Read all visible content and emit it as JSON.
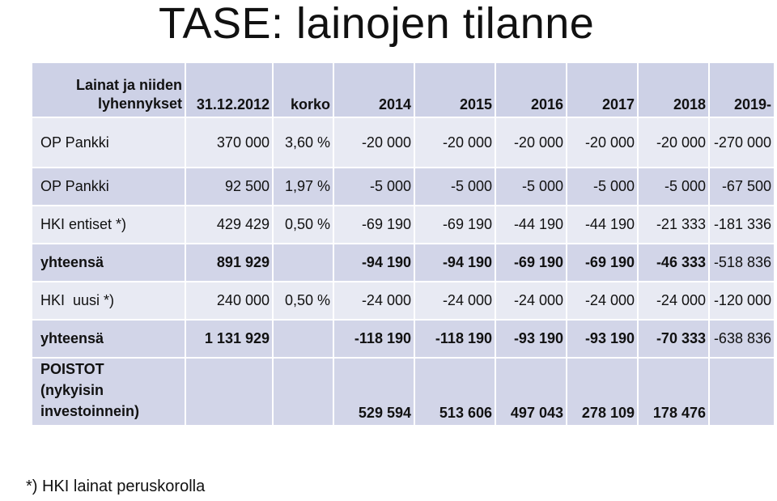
{
  "title": "TASE: lainojen tilanne",
  "header": {
    "name_line1": "Lainat ja niiden",
    "name_line2": "lyhennykset",
    "date": "31.12.2012",
    "rate": "korko",
    "years": [
      "2014",
      "2015",
      "2016",
      "2017",
      "2018",
      "2019-"
    ]
  },
  "rows": [
    {
      "name": "OP Pankki",
      "amount": "370 000",
      "rate": "3,60 %",
      "values": [
        "-20 000",
        "-20 000",
        "-20 000",
        "-20 000",
        "-20 000",
        "-270 000"
      ]
    },
    {
      "name": "OP Pankki",
      "amount": "92 500",
      "rate": "1,97 %",
      "values": [
        "-5 000",
        "-5 000",
        "-5 000",
        "-5 000",
        "-5 000",
        "-67 500"
      ]
    },
    {
      "name": "HKI entiset *)",
      "amount": "429 429",
      "rate": "0,50 %",
      "values": [
        "-69 190",
        "-69 190",
        "-44 190",
        "-44 190",
        "-21 333",
        "-181 336"
      ]
    },
    {
      "name": "yhteensä",
      "amount": "891 929",
      "rate": "",
      "values": [
        "-94 190",
        "-94 190",
        "-69 190",
        "-69 190",
        "-46 333",
        "-518 836"
      ]
    },
    {
      "name": "HKI  uusi *)",
      "amount": "240 000",
      "rate": "0,50 %",
      "values": [
        "-24 000",
        "-24 000",
        "-24 000",
        "-24 000",
        "-24 000",
        "-120 000"
      ]
    },
    {
      "name": "yhteensä",
      "amount": "1 131 929",
      "rate": "",
      "values": [
        "-118 190",
        "-118 190",
        "-93 190",
        "-93 190",
        "-70 333",
        "-638 836"
      ]
    },
    {
      "name_lines": [
        "POISTOT",
        "(nykyisin",
        "investoinnein)"
      ],
      "amount": "",
      "rate": "",
      "values": [
        "529 594",
        "513 606",
        "497 043",
        "278 109",
        "178 476",
        ""
      ]
    }
  ],
  "footnote": "*) HKI lainat peruskorolla"
}
